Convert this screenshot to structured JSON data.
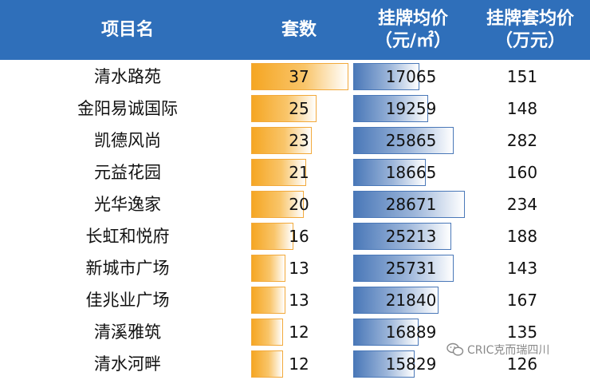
{
  "colors": {
    "header_bg": "#2f6fba",
    "sets_bar": "#f5a623",
    "price_bar": "#4a78b8"
  },
  "chart_data": {
    "type": "table",
    "columns": [
      {
        "key": "name",
        "label_lines": [
          "项目名"
        ]
      },
      {
        "key": "sets",
        "label_lines": [
          "套数"
        ],
        "bar": true,
        "max": 37
      },
      {
        "key": "price",
        "label_lines": [
          "挂牌均价",
          "（元/㎡）"
        ],
        "bar": true,
        "max": 28671
      },
      {
        "key": "total",
        "label_lines": [
          "挂牌套均价",
          "（万元）"
        ]
      }
    ],
    "rows": [
      {
        "name": "清水路苑",
        "sets": 37,
        "price": 17065,
        "total": 151
      },
      {
        "name": "金阳易诚国际",
        "sets": 25,
        "price": 19259,
        "total": 148
      },
      {
        "name": "凯德风尚",
        "sets": 23,
        "price": 25865,
        "total": 282
      },
      {
        "name": "元益花园",
        "sets": 21,
        "price": 18665,
        "total": 160
      },
      {
        "name": "光华逸家",
        "sets": 20,
        "price": 28671,
        "total": 234
      },
      {
        "name": "长虹和悦府",
        "sets": 16,
        "price": 25213,
        "total": 188
      },
      {
        "name": "新城市广场",
        "sets": 13,
        "price": 25731,
        "total": 143
      },
      {
        "name": "佳兆业广场",
        "sets": 13,
        "price": 21840,
        "total": 167
      },
      {
        "name": "清溪雅筑",
        "sets": 12,
        "price": 16889,
        "total": 135
      },
      {
        "name": "清水河畔",
        "sets": 12,
        "price": 15829,
        "total": 126
      }
    ]
  },
  "watermark": {
    "text": "CRIC克而瑞四川",
    "icon": "wechat-icon"
  }
}
